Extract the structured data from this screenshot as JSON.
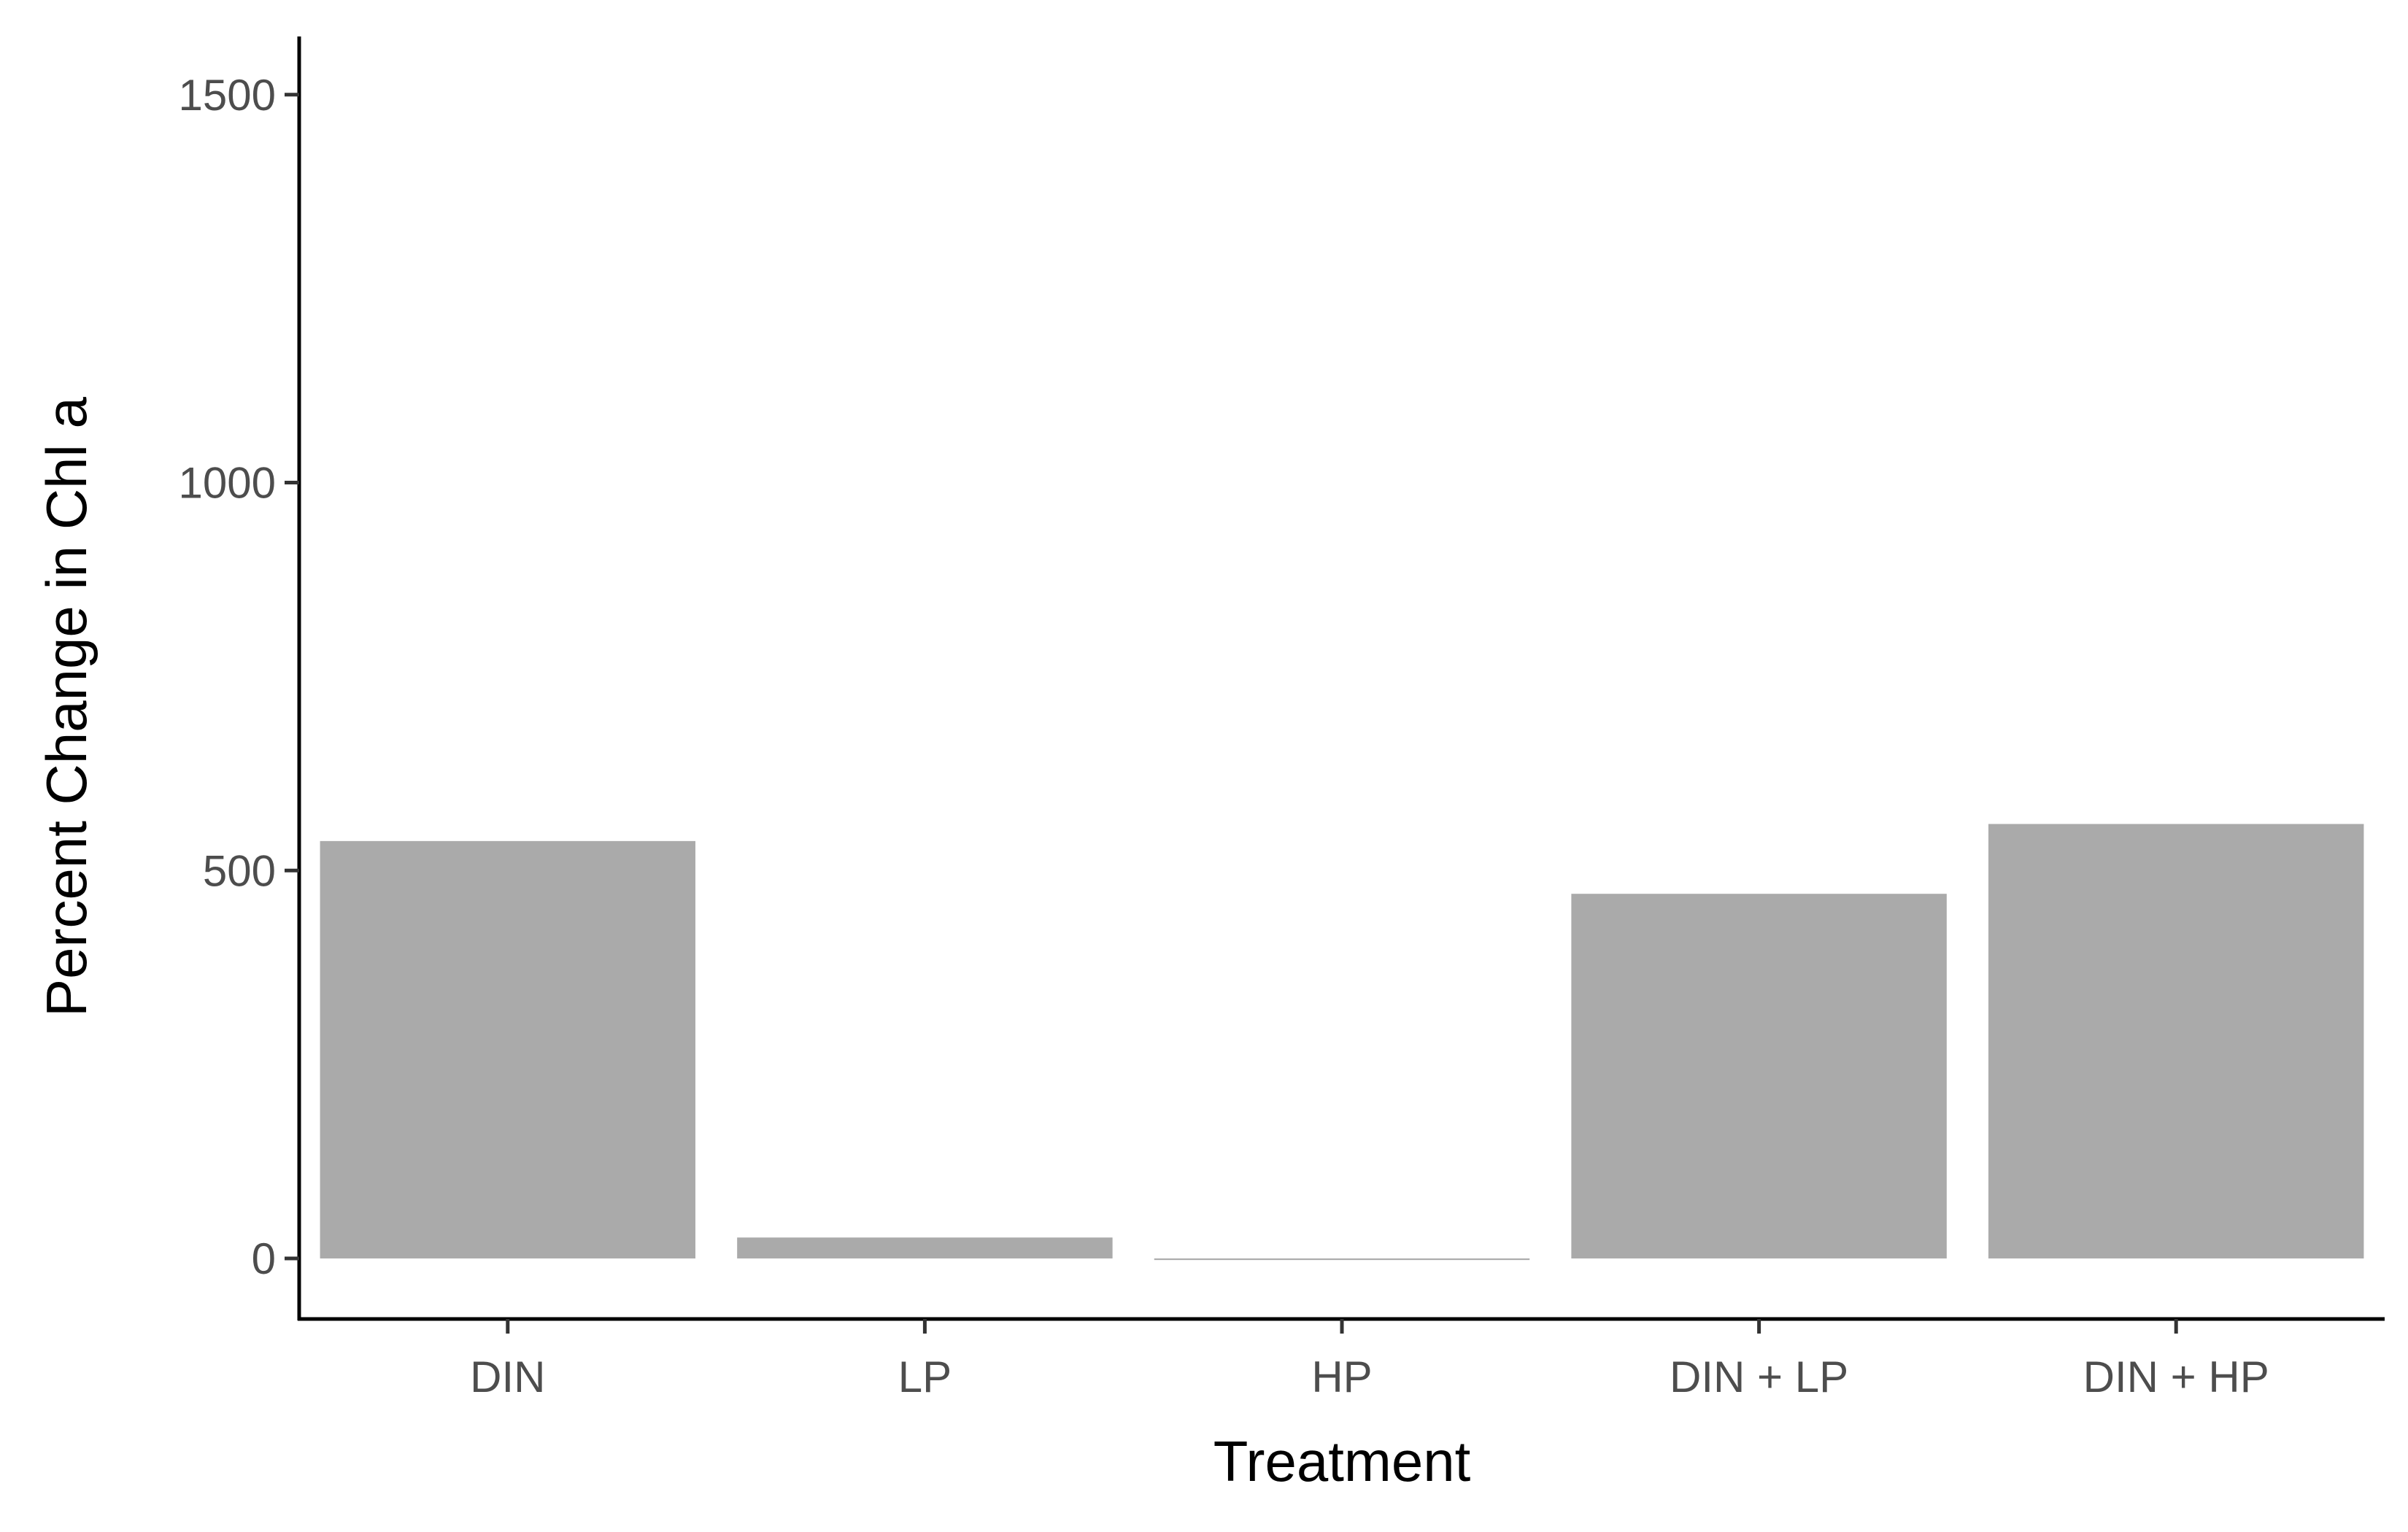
{
  "chart_data": {
    "type": "bar",
    "title": "",
    "xlabel": "Treatment",
    "ylabel": "Percent Change in Chl a",
    "categories": [
      "DIN",
      "LP",
      "HP",
      "DIN + LP",
      "DIN + HP"
    ],
    "values": [
      538,
      27,
      -2,
      470,
      560
    ],
    "ylim": [
      -78,
      1575
    ],
    "yticks": [
      0,
      500,
      1000,
      1500
    ],
    "ytick_labels": [
      "0",
      "500",
      "1000",
      "1500"
    ],
    "grid": false,
    "legend": "none",
    "colors": {
      "bar": "#aaaaaa",
      "axis": "#000000",
      "tick_label": "#4d4d4d",
      "background": "#ffffff"
    }
  }
}
